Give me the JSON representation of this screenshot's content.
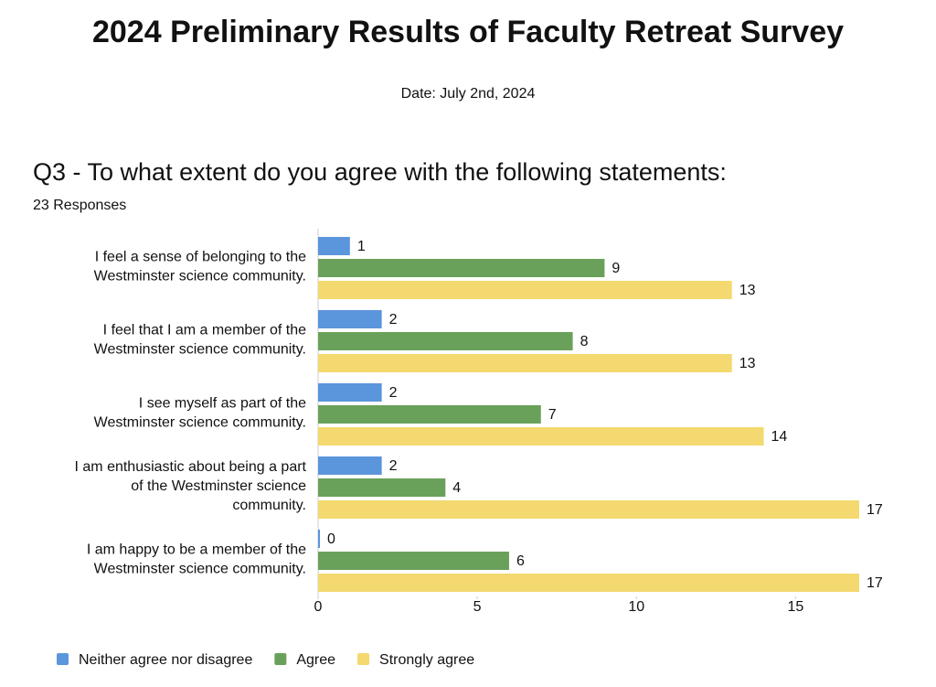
{
  "header": {
    "title": "2024 Preliminary Results of Faculty Retreat Survey",
    "date": "Date: July 2nd, 2024"
  },
  "chart_data": {
    "type": "hbar",
    "title": "Q3 - To what extent do you agree with the following statements:",
    "subtitle": "23 Responses",
    "categories": [
      [
        "I feel a sense of belonging to the",
        "Westminster science community."
      ],
      [
        "I feel that I am a member of the",
        "Westminster science community."
      ],
      [
        "I see myself as part of the",
        "Westminster science community."
      ],
      [
        "I am enthusiastic about being a part",
        "of the Westminster science",
        "community."
      ],
      [
        "I am happy to be a member of the",
        "Westminster science community."
      ]
    ],
    "series": [
      {
        "name": "Neither agree nor disagree",
        "color": "#5b95dc",
        "values": [
          1,
          2,
          2,
          2,
          0
        ]
      },
      {
        "name": "Agree",
        "color": "#6aa15a",
        "values": [
          9,
          8,
          7,
          4,
          6
        ]
      },
      {
        "name": "Strongly agree",
        "color": "#f3d96f",
        "values": [
          13,
          13,
          14,
          17,
          17
        ]
      }
    ],
    "xlim": [
      0,
      17
    ],
    "xticks": [
      0,
      5,
      10,
      15
    ],
    "grid": false,
    "legend": "bottom"
  }
}
